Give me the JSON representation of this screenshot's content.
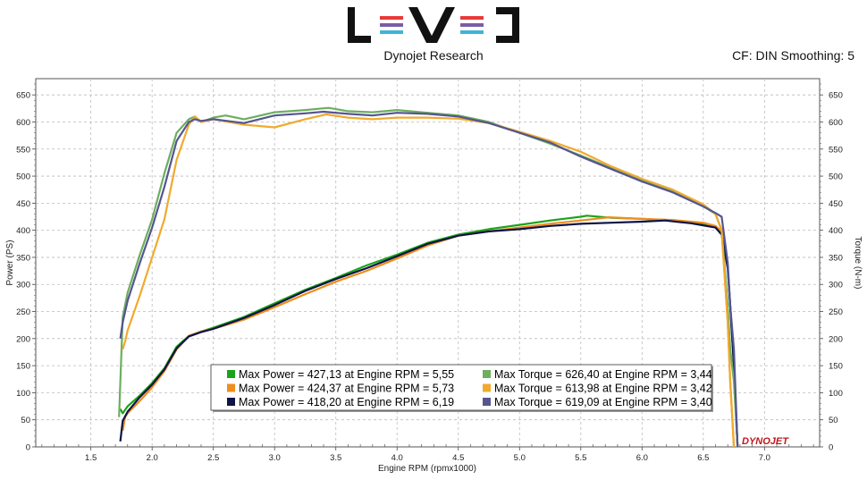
{
  "header": {
    "brand": "Dynojet Research",
    "info": "CF: DIN Smoothing: 5",
    "logo": "L E V E L",
    "footer_logo": "DYNOJET"
  },
  "colors": {
    "power1": "#1aa31a",
    "power2": "#ef8d1e",
    "power3": "#0d1446",
    "torque1": "#6dae5f",
    "torque2": "#f0aa2e",
    "torque3": "#555590"
  },
  "chart_data": {
    "type": "line",
    "xlabel": "Engine RPM (rpmx1000)",
    "ylabel_left": "Power (PS)",
    "ylabel_right": "Torque (N-m)",
    "xlim": [
      1.05,
      7.45
    ],
    "ylim": [
      0,
      680
    ],
    "x_ticks": [
      "1.5",
      "2.0",
      "2.5",
      "3.0",
      "3.5",
      "4.0",
      "4.5",
      "5.0",
      "5.5",
      "6.0",
      "6.5",
      "7.0"
    ],
    "y_ticks": [
      "0",
      "50",
      "100",
      "150",
      "200",
      "250",
      "300",
      "350",
      "400",
      "450",
      "500",
      "550",
      "600",
      "650"
    ],
    "grid": true,
    "legend_position": "bottom-center",
    "legend": [
      "Max Power = 427,13 at Engine RPM = 5,55",
      "Max Power = 424,37 at Engine RPM = 5,73",
      "Max Power = 418,20 at Engine RPM = 6,19",
      "Max Torque = 626,40 at Engine RPM = 3,44",
      "Max Torque = 613,98 at Engine RPM = 3,42",
      "Max Torque = 619,09 at Engine RPM = 3,40"
    ],
    "series": [
      {
        "name": "Power",
        "color": "#1aa31a",
        "x": [
          1.74,
          1.76,
          1.8,
          1.9,
          2.0,
          2.1,
          2.2,
          2.3,
          2.4,
          2.5,
          2.75,
          3.0,
          3.25,
          3.5,
          3.75,
          4.0,
          4.25,
          4.5,
          4.75,
          5.0,
          5.25,
          5.5,
          5.55,
          5.75,
          6.0,
          6.25,
          6.5,
          6.6,
          6.65,
          6.7,
          6.72,
          6.75,
          6.78
        ],
        "y": [
          70,
          62,
          75,
          95,
          118,
          145,
          185,
          205,
          213,
          220,
          240,
          265,
          290,
          312,
          335,
          355,
          377,
          392,
          402,
          410,
          418,
          425,
          427,
          423,
          421,
          418,
          412,
          405,
          395,
          330,
          260,
          150,
          0
        ]
      },
      {
        "name": "Power",
        "color": "#ef8d1e",
        "x": [
          1.76,
          1.78,
          1.8,
          1.9,
          2.0,
          2.1,
          2.2,
          2.3,
          2.4,
          2.5,
          2.75,
          3.0,
          3.25,
          3.5,
          3.75,
          4.0,
          4.25,
          4.5,
          4.75,
          5.0,
          5.25,
          5.5,
          5.73,
          6.0,
          6.25,
          6.5,
          6.6,
          6.65,
          6.7,
          6.72,
          6.75
        ],
        "y": [
          30,
          55,
          62,
          85,
          110,
          140,
          180,
          205,
          213,
          218,
          235,
          258,
          282,
          305,
          325,
          348,
          372,
          390,
          398,
          405,
          412,
          418,
          424,
          421,
          419,
          414,
          408,
          398,
          230,
          120,
          0
        ]
      },
      {
        "name": "Power",
        "color": "#0d1446",
        "x": [
          1.74,
          1.76,
          1.8,
          1.9,
          2.0,
          2.1,
          2.2,
          2.3,
          2.4,
          2.5,
          2.75,
          3.0,
          3.25,
          3.5,
          3.75,
          4.0,
          4.25,
          4.5,
          4.75,
          5.0,
          5.25,
          5.5,
          5.75,
          6.0,
          6.19,
          6.4,
          6.6,
          6.65,
          6.7,
          6.72,
          6.75,
          6.78
        ],
        "y": [
          10,
          48,
          65,
          92,
          115,
          143,
          182,
          204,
          212,
          218,
          238,
          262,
          288,
          310,
          330,
          352,
          375,
          390,
          398,
          402,
          408,
          412,
          414,
          416,
          418,
          413,
          405,
          392,
          330,
          260,
          150,
          0
        ]
      },
      {
        "name": "Torque",
        "color": "#6dae5f",
        "x": [
          1.73,
          1.76,
          1.8,
          1.9,
          2.0,
          2.1,
          2.2,
          2.3,
          2.35,
          2.4,
          2.5,
          2.6,
          2.75,
          3.0,
          3.25,
          3.44,
          3.6,
          3.8,
          4.0,
          4.25,
          4.5,
          4.75,
          5.0,
          5.25,
          5.5,
          5.75,
          6.0,
          6.25,
          6.5,
          6.6,
          6.65,
          6.7,
          6.72,
          6.75,
          6.78
        ],
        "y": [
          55,
          240,
          285,
          355,
          420,
          505,
          580,
          605,
          610,
          600,
          608,
          612,
          605,
          618,
          622,
          626,
          620,
          618,
          622,
          617,
          612,
          600,
          580,
          560,
          538,
          515,
          493,
          473,
          445,
          430,
          400,
          260,
          180,
          120,
          0
        ]
      },
      {
        "name": "Torque",
        "color": "#f0aa2e",
        "x": [
          1.76,
          1.78,
          1.8,
          1.9,
          2.0,
          2.1,
          2.2,
          2.3,
          2.35,
          2.4,
          2.5,
          2.75,
          3.0,
          3.25,
          3.42,
          3.6,
          3.8,
          4.0,
          4.25,
          4.5,
          4.75,
          5.0,
          5.25,
          5.5,
          5.75,
          6.0,
          6.25,
          6.5,
          6.6,
          6.65,
          6.7,
          6.72,
          6.75
        ],
        "y": [
          180,
          195,
          215,
          280,
          350,
          420,
          530,
          595,
          610,
          600,
          605,
          595,
          590,
          605,
          614,
          608,
          605,
          608,
          608,
          606,
          598,
          582,
          565,
          545,
          518,
          495,
          475,
          448,
          430,
          400,
          230,
          120,
          0
        ]
      },
      {
        "name": "Torque",
        "color": "#555590",
        "x": [
          1.74,
          1.76,
          1.8,
          1.9,
          2.0,
          2.1,
          2.2,
          2.3,
          2.35,
          2.4,
          2.5,
          2.75,
          3.0,
          3.25,
          3.4,
          3.6,
          3.8,
          4.0,
          4.25,
          4.5,
          4.75,
          5.0,
          5.25,
          5.5,
          5.75,
          6.0,
          6.25,
          6.5,
          6.6,
          6.65,
          6.7,
          6.72,
          6.75,
          6.78
        ],
        "y": [
          200,
          230,
          270,
          340,
          405,
          480,
          565,
          600,
          605,
          602,
          605,
          598,
          612,
          616,
          619,
          615,
          612,
          617,
          615,
          610,
          598,
          580,
          562,
          536,
          513,
          490,
          470,
          444,
          432,
          425,
          340,
          260,
          180,
          0
        ]
      }
    ]
  }
}
